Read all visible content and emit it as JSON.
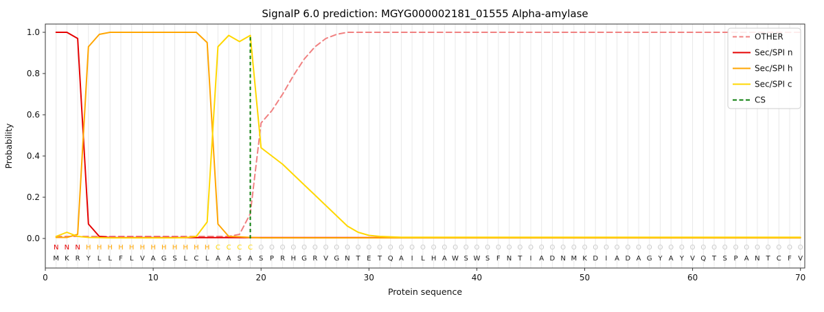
{
  "chart_data": {
    "type": "line",
    "title": "SignalP 6.0 prediction: MGYG000002181_01555 Alpha-amylase",
    "xlabel": "Protein sequence",
    "ylabel": "Probability",
    "xlim": [
      0,
      70.4
    ],
    "ylim": [
      -0.14,
      1.04
    ],
    "xticks": [
      0,
      10,
      20,
      30,
      40,
      50,
      60,
      70
    ],
    "yticks": [
      0.0,
      0.2,
      0.4,
      0.6,
      0.8,
      1.0
    ],
    "grid": "light vertical gridline at each residue position",
    "legend_position": "upper right",
    "n_residues": 70,
    "sequence": "MKRYLLFLVAGSLCLAASASPRHGRVGNTETQAILHAWSWSFNTIADNMKDIADAGYAYVQTSPANTCFV",
    "region_labels": "NNNHHHHHHHHHHHHCCCCOOOOOOOOOOOOOOOOOOOOOOOOOOOOOOOOOOOOOOOOOOOOOOOOOOO",
    "cleavage_site_position": 19,
    "series": [
      {
        "name": "OTHER",
        "color": "#f08080",
        "style": "dashed",
        "values": [
          0.01,
          0.01,
          0.01,
          0.01,
          0.01,
          0.01,
          0.01,
          0.01,
          0.01,
          0.01,
          0.01,
          0.01,
          0.01,
          0.01,
          0.01,
          0.01,
          0.01,
          0.02,
          0.12,
          0.56,
          0.62,
          0.7,
          0.79,
          0.87,
          0.93,
          0.97,
          0.99,
          1.0,
          1.0,
          1.0,
          1.0,
          1.0,
          1.0,
          1.0,
          1.0,
          1.0,
          1.0,
          1.0,
          1.0,
          1.0,
          1.0,
          1.0,
          1.0,
          1.0,
          1.0,
          1.0,
          1.0,
          1.0,
          1.0,
          1.0,
          1.0,
          1.0,
          1.0,
          1.0,
          1.0,
          1.0,
          1.0,
          1.0,
          1.0,
          1.0,
          1.0,
          1.0,
          1.0,
          1.0,
          1.0,
          1.0,
          1.0,
          1.0,
          1.0,
          1.0
        ]
      },
      {
        "name": "Sec/SPI n",
        "color": "#e50000",
        "style": "solid",
        "values": [
          1.0,
          1.0,
          0.97,
          0.07,
          0.01,
          0.004,
          0.004,
          0.004,
          0.004,
          0.004,
          0.004,
          0.004,
          0.004,
          0.004,
          0.004,
          0.004,
          0.004,
          0.004,
          0.004,
          0.004,
          0.004,
          0.004,
          0.004,
          0.004,
          0.004,
          0.004,
          0.004,
          0.004,
          0.004,
          0.004,
          0.004,
          0.004,
          0.004,
          0.004,
          0.004,
          0.004,
          0.004,
          0.004,
          0.004,
          0.004,
          0.004,
          0.004,
          0.004,
          0.004,
          0.004,
          0.004,
          0.004,
          0.004,
          0.004,
          0.004,
          0.004,
          0.004,
          0.004,
          0.004,
          0.004,
          0.004,
          0.004,
          0.004,
          0.004,
          0.004,
          0.004,
          0.004,
          0.004,
          0.004,
          0.004,
          0.004,
          0.004,
          0.004,
          0.004,
          0.004
        ]
      },
      {
        "name": "Sec/SPI h",
        "color": "#ffa500",
        "style": "solid",
        "values": [
          0.005,
          0.005,
          0.02,
          0.93,
          0.99,
          1.0,
          1.0,
          1.0,
          1.0,
          1.0,
          1.0,
          1.0,
          1.0,
          1.0,
          0.95,
          0.07,
          0.01,
          0.008,
          0.005,
          0.003,
          0.003,
          0.003,
          0.003,
          0.003,
          0.003,
          0.003,
          0.003,
          0.003,
          0.003,
          0.003,
          0.003,
          0.003,
          0.003,
          0.003,
          0.003,
          0.003,
          0.003,
          0.003,
          0.003,
          0.003,
          0.003,
          0.003,
          0.003,
          0.003,
          0.003,
          0.003,
          0.003,
          0.003,
          0.003,
          0.003,
          0.003,
          0.003,
          0.003,
          0.003,
          0.003,
          0.003,
          0.003,
          0.003,
          0.003,
          0.003,
          0.003,
          0.003,
          0.003,
          0.003,
          0.003,
          0.003,
          0.003,
          0.003,
          0.003,
          0.003
        ]
      },
      {
        "name": "Sec/SPI c",
        "color": "#ffd700",
        "style": "solid",
        "values": [
          0.01,
          0.03,
          0.01,
          0.005,
          0.004,
          0.003,
          0.003,
          0.003,
          0.003,
          0.003,
          0.003,
          0.003,
          0.004,
          0.01,
          0.08,
          0.93,
          0.985,
          0.955,
          0.985,
          0.44,
          0.4,
          0.36,
          0.31,
          0.26,
          0.21,
          0.16,
          0.11,
          0.06,
          0.03,
          0.015,
          0.01,
          0.008,
          0.006,
          0.006,
          0.006,
          0.006,
          0.006,
          0.006,
          0.006,
          0.006,
          0.006,
          0.006,
          0.006,
          0.006,
          0.006,
          0.006,
          0.006,
          0.006,
          0.006,
          0.006,
          0.006,
          0.006,
          0.006,
          0.006,
          0.006,
          0.006,
          0.006,
          0.006,
          0.006,
          0.006,
          0.006,
          0.006,
          0.006,
          0.006,
          0.006,
          0.006,
          0.006,
          0.006,
          0.006,
          0.006
        ]
      }
    ],
    "cs_line": {
      "label": "CS",
      "x": 19,
      "y_top": 0.98,
      "color": "#0a7d0a",
      "style": "dashed"
    },
    "legend": [
      {
        "label": "OTHER",
        "color": "#f08080",
        "dashed": true
      },
      {
        "label": "Sec/SPI n",
        "color": "#e50000",
        "dashed": false
      },
      {
        "label": "Sec/SPI h",
        "color": "#ffa500",
        "dashed": false
      },
      {
        "label": "Sec/SPI c",
        "color": "#ffd700",
        "dashed": false
      },
      {
        "label": "CS",
        "color": "#0a7d0a",
        "dashed": true
      }
    ],
    "label_colors": {
      "N": "#e50000",
      "H": "#ffa500",
      "C": "#ffd700",
      "O": "#c8c8c8"
    },
    "colors": {
      "grid": "#e8e8e8",
      "spine": "#333333",
      "sequence_text": "#1a1a1a",
      "tick_text": "#111111",
      "legend_border": "#cccccc"
    }
  }
}
